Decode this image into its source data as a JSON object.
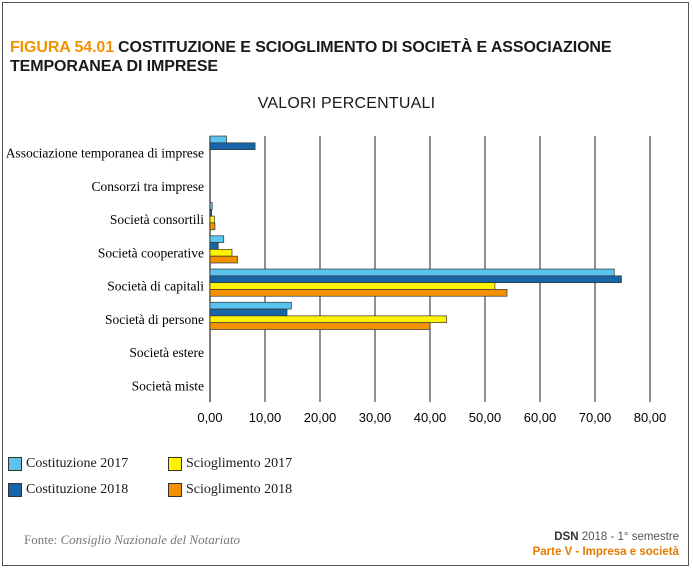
{
  "figure": {
    "label": "FIGURA 54.01",
    "title": "COSTITUZIONE E SCIOGLIMENTO DI SOCIETÀ E ASSOCIAZIONE TEMPORANEA DI IMPRESE"
  },
  "chart_data": {
    "type": "bar",
    "orientation": "horizontal",
    "title": "VALORI PERCENTUALI",
    "xlabel": "",
    "ylabel": "",
    "xlim": [
      0,
      80
    ],
    "xticks": [
      "0,00",
      "10,00",
      "20,00",
      "30,00",
      "40,00",
      "50,00",
      "60,00",
      "70,00",
      "80,00"
    ],
    "grid": "vertical",
    "legend_position": "bottom",
    "categories": [
      "Associazione temporanea di imprese",
      "Consorzi tra imprese",
      "Società consortili",
      "Società cooperative",
      "Società di capitali",
      "Società di persone",
      "Società estere",
      "Società miste"
    ],
    "series": [
      {
        "name": "Costituzione 2017",
        "color": "#5bc4ee",
        "values": [
          3.0,
          0.0,
          0.4,
          2.5,
          73.5,
          14.8,
          0.0,
          0.0
        ]
      },
      {
        "name": "Costituzione 2018",
        "color": "#1565a8",
        "values": [
          8.2,
          0.0,
          0.3,
          1.5,
          74.8,
          14.0,
          0.0,
          0.0
        ]
      },
      {
        "name": "Scioglimento 2017",
        "color": "#fff200",
        "values": [
          0.0,
          0.0,
          0.8,
          4.0,
          51.8,
          43.0,
          0.0,
          0.0
        ]
      },
      {
        "name": "Scioglimento 2018",
        "color": "#f39200",
        "values": [
          0.0,
          0.0,
          0.9,
          5.0,
          54.0,
          40.0,
          0.0,
          0.0
        ]
      }
    ]
  },
  "source": {
    "label": "Fonte:",
    "name": "Consiglio Nazionale del Notariato"
  },
  "footer": {
    "dsn": "DSN",
    "period": "2018 - 1° semestre",
    "part": "Parte V - Impresa e società"
  }
}
